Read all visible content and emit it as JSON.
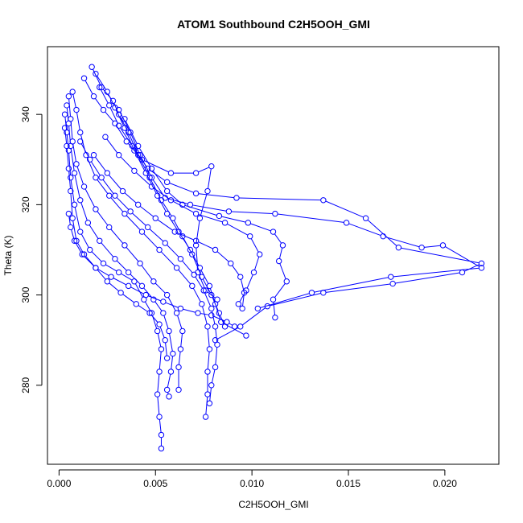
{
  "chart_data": {
    "type": "line",
    "title": "ATOM1 Southbound C2H5OOH_GMI",
    "xlabel": "C2H5OOH_GMI",
    "ylabel": "Theta (K)",
    "xlim": [
      -0.0006,
      0.0228
    ],
    "ylim": [
      262.5,
      355
    ],
    "xticks": [
      0.0,
      0.005,
      0.01,
      0.015,
      0.02
    ],
    "xtick_labels": [
      "0.000",
      "0.005",
      "0.010",
      "0.015",
      "0.020"
    ],
    "yticks": [
      280,
      300,
      320,
      340
    ],
    "ytick_labels": [
      "280",
      "300",
      "320",
      "340"
    ],
    "grid": false,
    "marker": "open-circle",
    "line_color": "#0000ff",
    "series": [
      {
        "values": [
          [
            0.0017,
            350.5
          ],
          [
            0.0022,
            346
          ],
          [
            0.0028,
            343
          ],
          [
            0.0031,
            340
          ],
          [
            0.0036,
            336
          ],
          [
            0.0041,
            331
          ],
          [
            0.0047,
            326
          ],
          [
            0.0053,
            321
          ],
          [
            0.0059,
            317
          ],
          [
            0.0064,
            313
          ],
          [
            0.0069,
            309
          ],
          [
            0.0074,
            304
          ],
          [
            0.0079,
            300
          ],
          [
            0.0083,
            296
          ],
          [
            0.0086,
            293
          ]
        ]
      },
      {
        "values": [
          [
            0.0019,
            349
          ],
          [
            0.0025,
            345
          ],
          [
            0.0029,
            341.5
          ],
          [
            0.0034,
            337
          ],
          [
            0.0039,
            332
          ],
          [
            0.0045,
            327
          ],
          [
            0.0051,
            322
          ],
          [
            0.0056,
            318
          ],
          [
            0.0062,
            314
          ],
          [
            0.0068,
            310
          ],
          [
            0.0073,
            306
          ],
          [
            0.0078,
            302
          ],
          [
            0.0081,
            298
          ],
          [
            0.0084,
            294
          ],
          [
            0.0097,
            291
          ]
        ]
      },
      {
        "values": [
          [
            0.0013,
            348
          ],
          [
            0.0018,
            344
          ],
          [
            0.0023,
            341
          ],
          [
            0.0029,
            338
          ],
          [
            0.0035,
            334
          ],
          [
            0.0043,
            330
          ],
          [
            0.0058,
            327
          ],
          [
            0.0071,
            327
          ],
          [
            0.0079,
            328.5
          ],
          [
            0.0077,
            323
          ],
          [
            0.0073,
            317
          ],
          [
            0.0071,
            311
          ],
          [
            0.0072,
            305
          ],
          [
            0.0076,
            301
          ],
          [
            0.0082,
            299
          ]
        ]
      },
      {
        "values": [
          [
            0.0021,
            346
          ],
          [
            0.0026,
            342
          ],
          [
            0.0031,
            337.5
          ],
          [
            0.0038,
            333
          ],
          [
            0.0046,
            328
          ],
          [
            0.0056,
            325
          ],
          [
            0.0071,
            322.5
          ],
          [
            0.0092,
            321.5
          ],
          [
            0.0137,
            321
          ],
          [
            0.0159,
            317
          ],
          [
            0.0176,
            310.5
          ],
          [
            0.0219,
            307
          ],
          [
            0.0209,
            305
          ],
          [
            0.0173,
            302.5
          ],
          [
            0.0137,
            300.5
          ],
          [
            0.0108,
            297.5
          ],
          [
            0.0094,
            293
          ],
          [
            0.0081,
            290
          ]
        ]
      },
      {
        "values": [
          [
            0.0031,
            341
          ],
          [
            0.0037,
            336
          ],
          [
            0.0042,
            331
          ],
          [
            0.0048,
            326
          ],
          [
            0.0055,
            321.5
          ],
          [
            0.0068,
            320
          ],
          [
            0.0088,
            318.5
          ],
          [
            0.0112,
            318
          ],
          [
            0.0149,
            316
          ],
          [
            0.0168,
            313
          ],
          [
            0.0188,
            310.5
          ],
          [
            0.0199,
            311
          ],
          [
            0.0219,
            306
          ],
          [
            0.0172,
            304
          ],
          [
            0.0131,
            300.5
          ],
          [
            0.0103,
            297
          ]
        ]
      },
      {
        "values": [
          [
            0.0034,
            339
          ],
          [
            0.0041,
            333
          ],
          [
            0.0048,
            328
          ],
          [
            0.0056,
            323
          ],
          [
            0.0064,
            320
          ],
          [
            0.0083,
            317.5
          ],
          [
            0.0098,
            316
          ],
          [
            0.0111,
            314
          ],
          [
            0.0116,
            311
          ],
          [
            0.0114,
            307.5
          ],
          [
            0.0118,
            303
          ],
          [
            0.0111,
            299
          ],
          [
            0.0112,
            295
          ]
        ]
      },
      {
        "values": [
          [
            0.0003,
            340
          ],
          [
            0.0004,
            336
          ],
          [
            0.0005,
            332
          ],
          [
            0.0006,
            326
          ],
          [
            0.0008,
            320
          ],
          [
            0.0011,
            314
          ],
          [
            0.0016,
            310
          ],
          [
            0.0023,
            307
          ],
          [
            0.0031,
            305
          ],
          [
            0.0039,
            303
          ],
          [
            0.0044,
            299
          ],
          [
            0.0048,
            296
          ],
          [
            0.0051,
            292
          ],
          [
            0.0053,
            288
          ],
          [
            0.0052,
            283
          ],
          [
            0.0051,
            278
          ],
          [
            0.0052,
            273
          ],
          [
            0.0053,
            269
          ],
          [
            0.0053,
            266
          ]
        ]
      },
      {
        "values": [
          [
            0.0004,
            342
          ],
          [
            0.0005,
            338
          ],
          [
            0.0006,
            333
          ],
          [
            0.0008,
            327
          ],
          [
            0.0011,
            321
          ],
          [
            0.0015,
            316
          ],
          [
            0.0021,
            312
          ],
          [
            0.0029,
            308
          ],
          [
            0.0036,
            305
          ],
          [
            0.0043,
            302
          ],
          [
            0.0049,
            299
          ],
          [
            0.0054,
            296
          ],
          [
            0.0057,
            292
          ],
          [
            0.0059,
            287
          ],
          [
            0.0058,
            283
          ],
          [
            0.0056,
            279
          ],
          [
            0.0057,
            277.5
          ]
        ]
      },
      {
        "values": [
          [
            0.0005,
            344
          ],
          [
            0.0006,
            339
          ],
          [
            0.0007,
            334
          ],
          [
            0.0009,
            329
          ],
          [
            0.0013,
            324
          ],
          [
            0.0019,
            319
          ],
          [
            0.0026,
            315
          ],
          [
            0.0034,
            311
          ],
          [
            0.0042,
            307
          ],
          [
            0.0049,
            303
          ],
          [
            0.0056,
            300
          ],
          [
            0.0061,
            296
          ],
          [
            0.0064,
            292
          ],
          [
            0.0063,
            288
          ],
          [
            0.0062,
            284
          ],
          [
            0.0062,
            279
          ]
        ]
      },
      {
        "values": [
          [
            0.0007,
            345
          ],
          [
            0.0009,
            341
          ],
          [
            0.0011,
            336
          ],
          [
            0.0014,
            331
          ],
          [
            0.0019,
            326
          ],
          [
            0.0026,
            322
          ],
          [
            0.0034,
            318
          ],
          [
            0.0043,
            314
          ],
          [
            0.0052,
            310
          ],
          [
            0.0061,
            306
          ],
          [
            0.0069,
            302
          ],
          [
            0.0074,
            298
          ],
          [
            0.0077,
            293
          ],
          [
            0.0078,
            288
          ],
          [
            0.0077,
            283
          ],
          [
            0.0077,
            278
          ],
          [
            0.0076,
            273
          ]
        ]
      },
      {
        "values": [
          [
            0.0005,
            318
          ],
          [
            0.0006,
            315
          ],
          [
            0.0008,
            312
          ],
          [
            0.0012,
            309
          ],
          [
            0.0019,
            306
          ],
          [
            0.0027,
            304
          ],
          [
            0.0036,
            302
          ],
          [
            0.0045,
            300
          ],
          [
            0.0054,
            298.5
          ],
          [
            0.0063,
            297
          ],
          [
            0.0072,
            296
          ],
          [
            0.0079,
            295.5
          ],
          [
            0.0087,
            294
          ],
          [
            0.0091,
            293
          ]
        ]
      },
      {
        "values": [
          [
            0.0011,
            334
          ],
          [
            0.0016,
            330
          ],
          [
            0.0022,
            326
          ],
          [
            0.0029,
            322
          ],
          [
            0.0037,
            318.5
          ],
          [
            0.0046,
            315
          ],
          [
            0.0055,
            311.5
          ],
          [
            0.0063,
            308
          ],
          [
            0.007,
            304.5
          ],
          [
            0.0075,
            301
          ],
          [
            0.0079,
            297
          ],
          [
            0.0081,
            293
          ],
          [
            0.0082,
            289
          ],
          [
            0.0081,
            284
          ],
          [
            0.0079,
            280
          ],
          [
            0.0078,
            276
          ]
        ]
      },
      {
        "values": [
          [
            0.0024,
            335
          ],
          [
            0.0031,
            331
          ],
          [
            0.0039,
            327.5
          ],
          [
            0.0048,
            324
          ],
          [
            0.0058,
            321
          ],
          [
            0.0071,
            318
          ],
          [
            0.0086,
            316
          ],
          [
            0.0099,
            313
          ],
          [
            0.0104,
            309
          ],
          [
            0.0101,
            305
          ],
          [
            0.0097,
            301
          ],
          [
            0.0093,
            298
          ]
        ]
      },
      {
        "values": [
          [
            0.0018,
            331
          ],
          [
            0.0025,
            327
          ],
          [
            0.0033,
            323
          ],
          [
            0.0041,
            320
          ],
          [
            0.005,
            317
          ],
          [
            0.006,
            314
          ],
          [
            0.0071,
            312
          ],
          [
            0.0081,
            310
          ],
          [
            0.0089,
            307
          ],
          [
            0.0094,
            304
          ],
          [
            0.0096,
            300.5
          ],
          [
            0.0095,
            297
          ]
        ]
      },
      {
        "values": [
          [
            0.0003,
            337
          ],
          [
            0.0004,
            333
          ],
          [
            0.0005,
            328
          ],
          [
            0.0006,
            323
          ],
          [
            0.0007,
            317
          ],
          [
            0.0009,
            312
          ],
          [
            0.0013,
            309
          ],
          [
            0.0019,
            306
          ],
          [
            0.0025,
            303
          ],
          [
            0.0032,
            300.5
          ],
          [
            0.004,
            298
          ],
          [
            0.0047,
            296
          ],
          [
            0.0052,
            293.5
          ],
          [
            0.0055,
            290
          ],
          [
            0.0056,
            286
          ]
        ]
      }
    ]
  }
}
